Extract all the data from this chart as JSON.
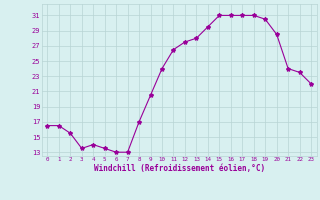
{
  "x": [
    0,
    1,
    2,
    3,
    4,
    5,
    6,
    7,
    8,
    9,
    10,
    11,
    12,
    13,
    14,
    15,
    16,
    17,
    18,
    19,
    20,
    21,
    22,
    23
  ],
  "y": [
    16.5,
    16.5,
    15.5,
    13.5,
    14.0,
    13.5,
    13.0,
    13.0,
    17.0,
    20.5,
    24.0,
    26.5,
    27.5,
    28.0,
    29.5,
    31.0,
    31.0,
    31.0,
    31.0,
    30.5,
    28.5,
    24.0,
    23.5,
    22.0
  ],
  "line_color": "#990099",
  "marker": "*",
  "marker_size": 3,
  "bg_color": "#d8f0f0",
  "grid_color": "#b8d4d4",
  "xlabel": "Windchill (Refroidissement éolien,°C)",
  "xlabel_color": "#990099",
  "tick_color": "#990099",
  "yticks": [
    13,
    15,
    17,
    19,
    21,
    23,
    25,
    27,
    29,
    31
  ],
  "xticks": [
    0,
    1,
    2,
    3,
    4,
    5,
    6,
    7,
    8,
    9,
    10,
    11,
    12,
    13,
    14,
    15,
    16,
    17,
    18,
    19,
    20,
    21,
    22,
    23
  ],
  "ylim": [
    12.5,
    32.5
  ],
  "xlim": [
    -0.5,
    23.5
  ]
}
